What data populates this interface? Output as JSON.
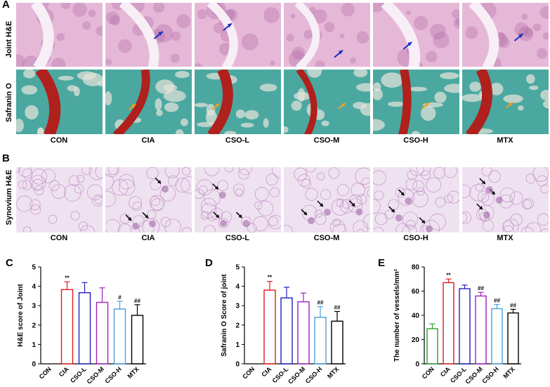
{
  "panels": {
    "A": "A",
    "B": "B",
    "C": "C",
    "D": "D",
    "E": "E"
  },
  "row_labels": {
    "joint_he": "Joint H&E",
    "safranin": "Safranin O",
    "synovium": "Synovium H&E"
  },
  "groups": [
    "CON",
    "CIA",
    "CSO-L",
    "CSO-M",
    "CSO-H",
    "MTX"
  ],
  "colors": {
    "he_bg": "#e6b8d8",
    "he_dark": "#b06aa6",
    "safranin_green": "#4aa8a0",
    "safranin_red": "#b0201c",
    "syn_bg": "#efe2f0",
    "arrow_blue": "#1a2fc0",
    "arrow_orange": "#f0a020"
  },
  "chart_data": [
    {
      "type": "bar",
      "panel": "C",
      "categories": [
        "CON",
        "CIA",
        "CSO-L",
        "CSO-M",
        "CSO-H",
        "MTX"
      ],
      "values": [
        0,
        3.83,
        3.67,
        3.17,
        2.83,
        2.5
      ],
      "errors": [
        0,
        0.4,
        0.52,
        0.75,
        0.4,
        0.55
      ],
      "annotations": [
        "",
        "**",
        "",
        "",
        "#",
        "##"
      ],
      "colors": [
        "#2ca02c",
        "#e41a1c",
        "#2020c0",
        "#a020c0",
        "#4aa0e0",
        "#000000"
      ],
      "xlabel": "",
      "ylabel": "H&E score of Joint",
      "ylim": [
        0,
        5
      ],
      "yticks": [
        0,
        1,
        2,
        3,
        4,
        5
      ]
    },
    {
      "type": "bar",
      "panel": "D",
      "categories": [
        "CON",
        "CIA",
        "CSO-L",
        "CSO-M",
        "CSO-H",
        "MTX"
      ],
      "values": [
        0,
        3.8,
        3.4,
        3.2,
        2.4,
        2.2
      ],
      "errors": [
        0,
        0.45,
        0.55,
        0.45,
        0.55,
        0.5
      ],
      "annotations": [
        "",
        "**",
        "",
        "",
        "##",
        "##"
      ],
      "colors": [
        "#2ca02c",
        "#e41a1c",
        "#2020c0",
        "#a020c0",
        "#4aa0e0",
        "#000000"
      ],
      "xlabel": "",
      "ylabel": "Safranin O Score of joint",
      "ylim": [
        0,
        5
      ],
      "yticks": [
        0,
        1,
        2,
        3,
        4,
        5
      ]
    },
    {
      "type": "bar",
      "panel": "E",
      "categories": [
        "CON",
        "CIA",
        "CSO-L",
        "CSO-M",
        "CSO-H",
        "MTX"
      ],
      "values": [
        29,
        67,
        62,
        56,
        45.5,
        42
      ],
      "errors": [
        4,
        3,
        3,
        3,
        3.5,
        3
      ],
      "annotations": [
        "",
        "**",
        "",
        "##",
        "##",
        "##"
      ],
      "colors": [
        "#2ca02c",
        "#e41a1c",
        "#2020c0",
        "#a020c0",
        "#4aa0e0",
        "#000000"
      ],
      "xlabel": "",
      "ylabel": "The number of vessels/mm²",
      "ylim": [
        0,
        80
      ],
      "yticks": [
        0,
        20,
        40,
        60,
        80
      ]
    }
  ]
}
